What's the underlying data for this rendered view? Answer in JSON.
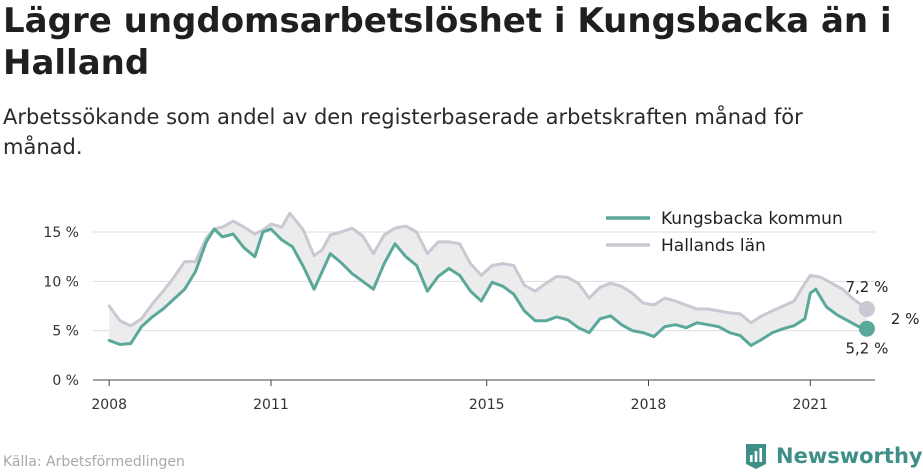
{
  "title": "Lägre ungdomsarbetslöshet i Kungsbacka än i Halland",
  "subtitle": "Arbetssökande som andel av den registerbaserade arbetskraften månad för månad.",
  "source": "Källa: Arbetsförmedlingen",
  "brand": "Newsworthy",
  "colors": {
    "kommun": "#5aa89a",
    "lan": "#c9c8d3",
    "fill": "#ececec",
    "grid": "#dddddd",
    "brand": "#3f8f88"
  },
  "chart_data": {
    "type": "line",
    "x_ticks": [
      {
        "label": "2008",
        "value": 2008.0
      },
      {
        "label": "2011",
        "value": 2011.0
      },
      {
        "label": "2015",
        "value": 2015.0
      },
      {
        "label": "2018",
        "value": 2018.0
      },
      {
        "label": "2021",
        "value": 2021.0
      }
    ],
    "y_ticks": [
      {
        "label": "0 %",
        "value": 0
      },
      {
        "label": "5 %",
        "value": 5
      },
      {
        "label": "10 %",
        "value": 10
      },
      {
        "label": "15 %",
        "value": 15
      }
    ],
    "xlim": [
      2007.7,
      2022.2
    ],
    "ylim": [
      0,
      15
    ],
    "legend": "top-right",
    "series": [
      {
        "name": "Kungsbacka kommun",
        "color": "#5aa89a",
        "end_label": "5,2 %",
        "points": [
          [
            2008.0,
            4.0
          ],
          [
            2008.2,
            3.6
          ],
          [
            2008.4,
            3.7
          ],
          [
            2008.6,
            5.4
          ],
          [
            2008.8,
            6.4
          ],
          [
            2009.0,
            7.2
          ],
          [
            2009.2,
            8.2
          ],
          [
            2009.4,
            9.2
          ],
          [
            2009.6,
            11.0
          ],
          [
            2009.8,
            14.0
          ],
          [
            2009.95,
            15.3
          ],
          [
            2010.1,
            14.5
          ],
          [
            2010.3,
            14.8
          ],
          [
            2010.5,
            13.4
          ],
          [
            2010.7,
            12.5
          ],
          [
            2010.85,
            15.0
          ],
          [
            2011.0,
            15.3
          ],
          [
            2011.2,
            14.2
          ],
          [
            2011.4,
            13.5
          ],
          [
            2011.6,
            11.5
          ],
          [
            2011.8,
            9.2
          ],
          [
            2011.95,
            11.0
          ],
          [
            2012.1,
            12.8
          ],
          [
            2012.3,
            11.9
          ],
          [
            2012.5,
            10.8
          ],
          [
            2012.7,
            10.0
          ],
          [
            2012.9,
            9.2
          ],
          [
            2013.1,
            11.8
          ],
          [
            2013.3,
            13.8
          ],
          [
            2013.5,
            12.5
          ],
          [
            2013.7,
            11.6
          ],
          [
            2013.9,
            9.0
          ],
          [
            2014.1,
            10.5
          ],
          [
            2014.3,
            11.3
          ],
          [
            2014.5,
            10.6
          ],
          [
            2014.7,
            9.0
          ],
          [
            2014.9,
            8.0
          ],
          [
            2015.1,
            9.9
          ],
          [
            2015.3,
            9.5
          ],
          [
            2015.5,
            8.7
          ],
          [
            2015.7,
            7.0
          ],
          [
            2015.9,
            6.0
          ],
          [
            2016.1,
            6.0
          ],
          [
            2016.3,
            6.4
          ],
          [
            2016.5,
            6.1
          ],
          [
            2016.7,
            5.3
          ],
          [
            2016.9,
            4.8
          ],
          [
            2017.1,
            6.2
          ],
          [
            2017.3,
            6.5
          ],
          [
            2017.5,
            5.6
          ],
          [
            2017.7,
            5.0
          ],
          [
            2017.9,
            4.8
          ],
          [
            2018.1,
            4.4
          ],
          [
            2018.3,
            5.4
          ],
          [
            2018.5,
            5.6
          ],
          [
            2018.7,
            5.3
          ],
          [
            2018.9,
            5.8
          ],
          [
            2019.1,
            5.6
          ],
          [
            2019.3,
            5.4
          ],
          [
            2019.5,
            4.8
          ],
          [
            2019.7,
            4.5
          ],
          [
            2019.9,
            3.5
          ],
          [
            2020.1,
            4.1
          ],
          [
            2020.3,
            4.8
          ],
          [
            2020.5,
            5.2
          ],
          [
            2020.7,
            5.5
          ],
          [
            2020.9,
            6.2
          ],
          [
            2021.0,
            8.8
          ],
          [
            2021.1,
            9.2
          ],
          [
            2021.3,
            7.4
          ],
          [
            2021.5,
            6.6
          ],
          [
            2021.7,
            6.0
          ],
          [
            2021.9,
            5.4
          ],
          [
            2022.05,
            5.2
          ]
        ]
      },
      {
        "name": "Hallands län",
        "color": "#c9c8d3",
        "end_label": "7,2 %",
        "points": [
          [
            2008.0,
            7.5
          ],
          [
            2008.2,
            6.0
          ],
          [
            2008.4,
            5.5
          ],
          [
            2008.6,
            6.2
          ],
          [
            2008.8,
            7.7
          ],
          [
            2009.0,
            9.0
          ],
          [
            2009.2,
            10.4
          ],
          [
            2009.4,
            12.0
          ],
          [
            2009.6,
            12.0
          ],
          [
            2009.8,
            14.4
          ],
          [
            2009.95,
            15.3
          ],
          [
            2010.1,
            15.5
          ],
          [
            2010.3,
            16.1
          ],
          [
            2010.5,
            15.5
          ],
          [
            2010.7,
            14.8
          ],
          [
            2010.85,
            15.2
          ],
          [
            2011.0,
            15.8
          ],
          [
            2011.2,
            15.5
          ],
          [
            2011.35,
            16.9
          ],
          [
            2011.6,
            15.2
          ],
          [
            2011.8,
            12.6
          ],
          [
            2011.95,
            13.2
          ],
          [
            2012.1,
            14.7
          ],
          [
            2012.3,
            15.0
          ],
          [
            2012.5,
            15.4
          ],
          [
            2012.7,
            14.6
          ],
          [
            2012.9,
            12.8
          ],
          [
            2013.1,
            14.7
          ],
          [
            2013.3,
            15.4
          ],
          [
            2013.5,
            15.6
          ],
          [
            2013.7,
            15.0
          ],
          [
            2013.9,
            12.8
          ],
          [
            2014.1,
            14.0
          ],
          [
            2014.3,
            14.0
          ],
          [
            2014.5,
            13.8
          ],
          [
            2014.7,
            11.8
          ],
          [
            2014.9,
            10.6
          ],
          [
            2015.1,
            11.6
          ],
          [
            2015.3,
            11.8
          ],
          [
            2015.5,
            11.6
          ],
          [
            2015.7,
            9.6
          ],
          [
            2015.9,
            9.0
          ],
          [
            2016.1,
            9.8
          ],
          [
            2016.3,
            10.5
          ],
          [
            2016.5,
            10.4
          ],
          [
            2016.7,
            9.8
          ],
          [
            2016.9,
            8.3
          ],
          [
            2017.1,
            9.4
          ],
          [
            2017.3,
            9.8
          ],
          [
            2017.5,
            9.5
          ],
          [
            2017.7,
            8.8
          ],
          [
            2017.9,
            7.8
          ],
          [
            2018.1,
            7.6
          ],
          [
            2018.3,
            8.3
          ],
          [
            2018.5,
            8.0
          ],
          [
            2018.7,
            7.6
          ],
          [
            2018.9,
            7.2
          ],
          [
            2019.1,
            7.2
          ],
          [
            2019.3,
            7.0
          ],
          [
            2019.5,
            6.8
          ],
          [
            2019.7,
            6.7
          ],
          [
            2019.9,
            5.8
          ],
          [
            2020.1,
            6.5
          ],
          [
            2020.3,
            7.0
          ],
          [
            2020.5,
            7.5
          ],
          [
            2020.7,
            8.0
          ],
          [
            2020.9,
            9.8
          ],
          [
            2021.0,
            10.6
          ],
          [
            2021.2,
            10.4
          ],
          [
            2021.4,
            9.8
          ],
          [
            2021.6,
            9.2
          ],
          [
            2021.8,
            8.2
          ],
          [
            2022.05,
            7.2
          ]
        ]
      }
    ],
    "annotation": {
      "label": "2 %",
      "position": "right"
    }
  }
}
